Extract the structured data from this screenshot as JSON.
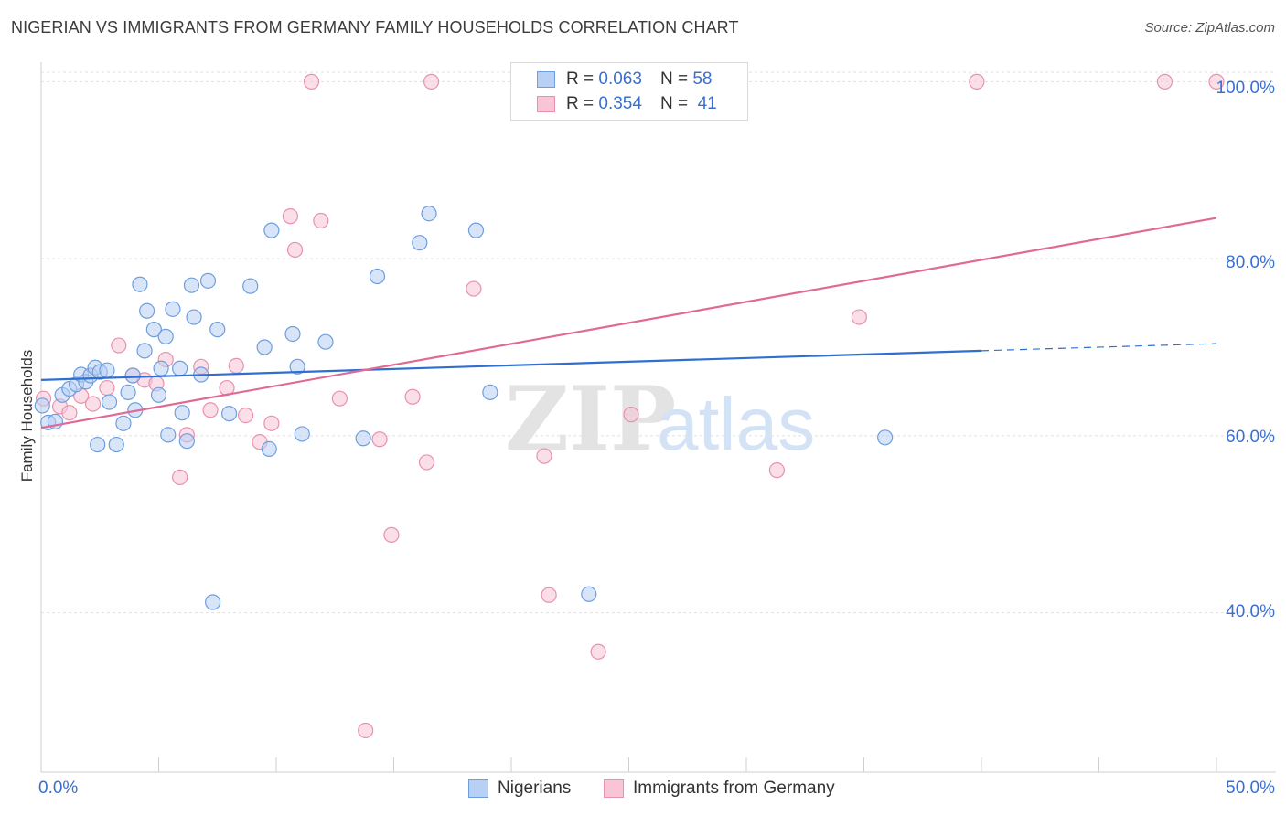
{
  "header": {
    "title": "NIGERIAN VS IMMIGRANTS FROM GERMANY FAMILY HOUSEHOLDS CORRELATION CHART",
    "source": "Source: ZipAtlas.com"
  },
  "watermark": {
    "zip": "ZIP",
    "atlas": "atlas"
  },
  "legend": {
    "r_label": "R =",
    "n_label": "N =",
    "rows": [
      {
        "r": "0.063",
        "n": "58"
      },
      {
        "r": "0.354",
        "n": "41"
      }
    ]
  },
  "colors": {
    "blue_fill": "#b8d0f4",
    "blue_stroke": "#6e9ede",
    "blue_line": "#2f6fd0",
    "pink_fill": "#f8c4d6",
    "pink_stroke": "#e891ae",
    "pink_line": "#e06a95",
    "axis_text": "#3a6fd1",
    "grid": "#e0e0e0"
  },
  "chart_data": {
    "type": "scatter",
    "title": "NIGERIAN VS IMMIGRANTS FROM GERMANY FAMILY HOUSEHOLDS CORRELATION CHART",
    "xlabel": "",
    "ylabel": "Family Households",
    "xlim": [
      0,
      50
    ],
    "ylim": [
      22,
      102
    ],
    "x_tick_labels": [
      "0.0%",
      "50.0%"
    ],
    "y_ticks": [
      {
        "value": 40,
        "label": "40.0%"
      },
      {
        "value": 60,
        "label": "60.0%"
      },
      {
        "value": 80,
        "label": "80.0%"
      },
      {
        "value": 100,
        "label": "100.0%"
      }
    ],
    "legend_position": "top-center",
    "series": [
      {
        "name": "Nigerians",
        "color": "blue",
        "r": 0.063,
        "n": 58,
        "trend": {
          "x0": 0,
          "y0": 66.3,
          "x1": 40,
          "y1": 69.6,
          "dash_to_x": 50,
          "dash_to_y": 70.4
        },
        "points": [
          [
            0.05,
            63.4
          ],
          [
            0.3,
            61.5
          ],
          [
            0.6,
            61.6
          ],
          [
            0.9,
            64.6
          ],
          [
            1.2,
            65.3
          ],
          [
            1.5,
            65.8
          ],
          [
            1.7,
            66.9
          ],
          [
            1.9,
            66.1
          ],
          [
            2.1,
            66.8
          ],
          [
            2.3,
            67.7
          ],
          [
            2.5,
            67.2
          ],
          [
            2.8,
            67.4
          ],
          [
            2.4,
            59.0
          ],
          [
            2.9,
            63.8
          ],
          [
            3.2,
            59.0
          ],
          [
            3.5,
            61.4
          ],
          [
            3.7,
            64.9
          ],
          [
            3.9,
            66.8
          ],
          [
            4.0,
            62.9
          ],
          [
            4.2,
            77.1
          ],
          [
            4.4,
            69.6
          ],
          [
            4.5,
            74.1
          ],
          [
            4.8,
            72.0
          ],
          [
            5.0,
            64.6
          ],
          [
            5.1,
            67.6
          ],
          [
            5.3,
            71.2
          ],
          [
            5.4,
            60.1
          ],
          [
            5.6,
            74.3
          ],
          [
            5.9,
            67.6
          ],
          [
            6.0,
            62.6
          ],
          [
            6.2,
            59.4
          ],
          [
            6.4,
            77.0
          ],
          [
            6.5,
            73.4
          ],
          [
            6.8,
            66.9
          ],
          [
            7.1,
            77.5
          ],
          [
            7.5,
            72.0
          ],
          [
            7.3,
            41.2
          ],
          [
            8.0,
            62.5
          ],
          [
            8.9,
            76.9
          ],
          [
            9.5,
            70.0
          ],
          [
            9.7,
            58.5
          ],
          [
            9.8,
            83.2
          ],
          [
            10.7,
            71.5
          ],
          [
            10.9,
            67.8
          ],
          [
            11.1,
            60.2
          ],
          [
            12.1,
            70.6
          ],
          [
            13.7,
            59.7
          ],
          [
            14.3,
            78.0
          ],
          [
            16.1,
            81.8
          ],
          [
            16.5,
            85.1
          ],
          [
            18.5,
            83.2
          ],
          [
            19.1,
            64.9
          ],
          [
            23.3,
            42.1
          ],
          [
            35.9,
            59.8
          ]
        ]
      },
      {
        "name": "Immigrants from Germany",
        "color": "pink",
        "r": 0.354,
        "n": 41,
        "trend": {
          "x0": 0,
          "y0": 60.9,
          "x1": 50,
          "y1": 84.6
        },
        "points": [
          [
            0.1,
            64.2
          ],
          [
            0.8,
            63.3
          ],
          [
            1.2,
            62.6
          ],
          [
            1.7,
            64.5
          ],
          [
            2.2,
            63.6
          ],
          [
            2.8,
            65.4
          ],
          [
            3.3,
            70.2
          ],
          [
            3.9,
            66.8
          ],
          [
            4.4,
            66.3
          ],
          [
            4.9,
            65.9
          ],
          [
            5.3,
            68.6
          ],
          [
            5.9,
            55.3
          ],
          [
            6.2,
            60.1
          ],
          [
            6.8,
            67.8
          ],
          [
            7.2,
            62.9
          ],
          [
            7.9,
            65.4
          ],
          [
            8.3,
            67.9
          ],
          [
            8.7,
            62.3
          ],
          [
            9.3,
            59.3
          ],
          [
            9.8,
            61.4
          ],
          [
            10.6,
            84.8
          ],
          [
            10.8,
            81.0
          ],
          [
            11.5,
            100.0
          ],
          [
            11.9,
            84.3
          ],
          [
            12.7,
            64.2
          ],
          [
            13.8,
            26.7
          ],
          [
            14.4,
            59.6
          ],
          [
            14.9,
            48.8
          ],
          [
            15.8,
            64.4
          ],
          [
            16.4,
            57.0
          ],
          [
            16.6,
            100.0
          ],
          [
            18.4,
            76.6
          ],
          [
            21.4,
            57.7
          ],
          [
            21.6,
            42.0
          ],
          [
            23.7,
            35.6
          ],
          [
            25.1,
            62.4
          ],
          [
            31.3,
            56.1
          ],
          [
            34.8,
            73.4
          ],
          [
            39.8,
            100.0
          ],
          [
            47.8,
            100.0
          ],
          [
            50.0,
            100.0
          ]
        ]
      }
    ]
  }
}
